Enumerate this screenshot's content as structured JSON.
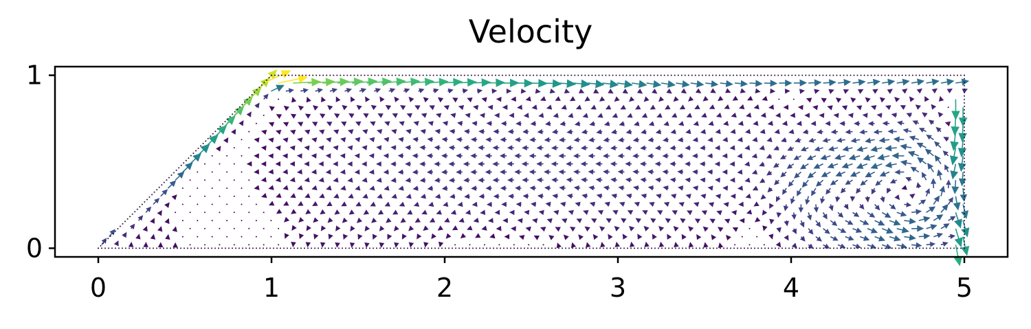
{
  "chart_data": {
    "type": "quiver",
    "title": "Velocity",
    "xlabel": "",
    "ylabel": "",
    "xlim": [
      -0.25,
      5.25
    ],
    "ylim": [
      -0.05,
      1.05
    ],
    "xticks": [
      0,
      1,
      2,
      3,
      4,
      5
    ],
    "xtick_labels": [
      "0",
      "1",
      "2",
      "3",
      "4",
      "5"
    ],
    "yticks": [
      0,
      1
    ],
    "ytick_labels": [
      "0",
      "1"
    ],
    "grid": false,
    "colormap": "viridis",
    "domain": {
      "boundary": [
        [
          0,
          0
        ],
        [
          5,
          0
        ],
        [
          5,
          1
        ],
        [
          1,
          1
        ],
        [
          0,
          0
        ]
      ],
      "description_shape": "trapezoid channel with slanted inlet from (0,0) to (1,1)"
    },
    "features": {
      "inlet_jet": {
        "from": [
          0,
          0
        ],
        "to": [
          1,
          1
        ],
        "speed": "high"
      },
      "top_jet": {
        "from": [
          1,
          0.98
        ],
        "to": [
          5.1,
          0.98
        ],
        "speed": "high"
      },
      "outlet_wall_jet": {
        "x": 4.97,
        "y_range": [
          0,
          0.9
        ],
        "speed": "high"
      },
      "vortices": [
        {
          "center": [
            4.25,
            0.3
          ],
          "radius": 0.28,
          "strength": "medium"
        },
        {
          "center": [
            4.68,
            0.33
          ],
          "radius": 0.3,
          "strength": "high"
        }
      ]
    },
    "colors": {
      "low": "#440154",
      "mid": "#21918c",
      "high": "#fde725"
    }
  }
}
